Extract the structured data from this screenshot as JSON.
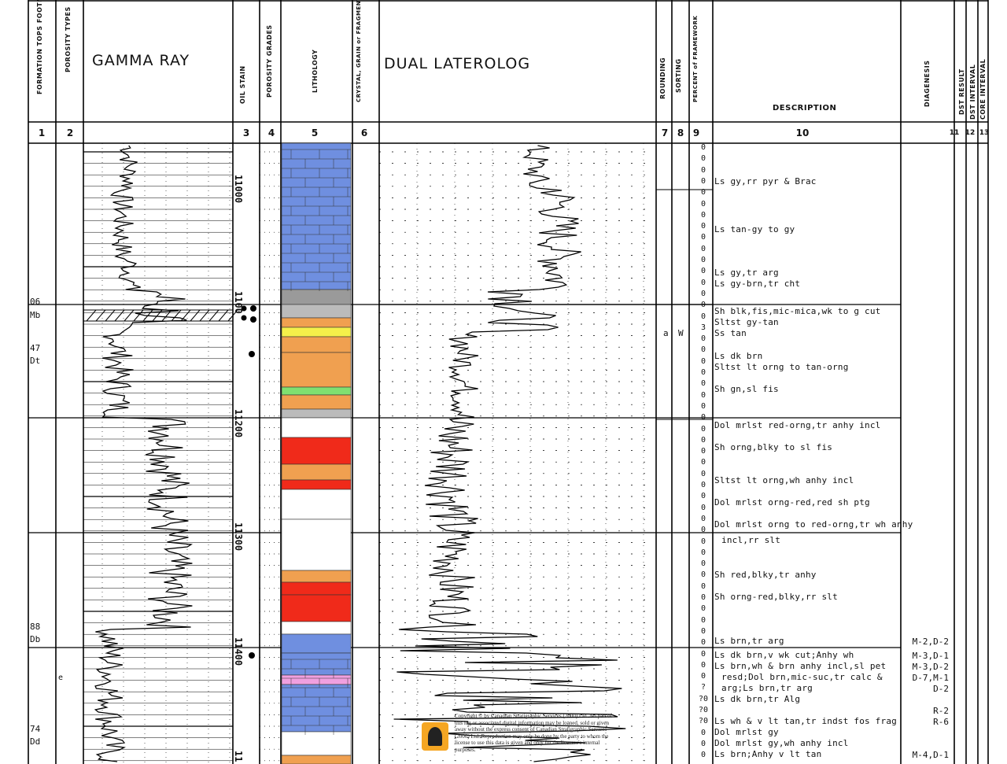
{
  "headers": {
    "col1": "FORMATION TOPS FOOTNOTES",
    "col2": "POROSITY TYPES",
    "gamma": "GAMMA RAY",
    "oil": "OIL STAIN",
    "porgrades": "POROSITY GRADES",
    "litho": "LITHOLOGY",
    "crystal": "CRYSTAL, GRAIN or FRAGMENT SIZE",
    "dual": "DUAL LATEROLOG",
    "rounding": "ROUNDING",
    "sorting": "SORTING",
    "percent": "PERCENT of FRAMEWORK",
    "description": "DESCRIPTION",
    "diagenesis": "DIAGENESIS",
    "dst_result": "DST RESULT",
    "dst_interval": "DST INTERVAL",
    "core_interval": "CORE INTERVAL"
  },
  "column_numbers": [
    "1",
    "2",
    "3",
    "4",
    "5",
    "6",
    "7",
    "8",
    "9",
    "10",
    "11",
    "12",
    "13"
  ],
  "depth_labels": [
    "11000",
    "1100",
    "11200",
    "11300",
    "11400",
    "11"
  ],
  "formation_tops": [
    "06",
    "Mb",
    "47",
    "Dt",
    "88",
    "Db",
    "74",
    "Dd"
  ],
  "porosity_note": "e",
  "rounding_sorting": {
    "rounding": "a",
    "sorting": "W"
  },
  "percent_values": [
    "0",
    "0",
    "0",
    "0",
    "0",
    "0",
    "0",
    "0",
    "0",
    "0",
    "0",
    "0",
    "0",
    "0",
    "0",
    "0",
    "3",
    "0",
    "0",
    "0",
    "0",
    "0",
    "0",
    "0",
    "0",
    "0",
    "0",
    "0",
    "0",
    "0",
    "0",
    "0",
    "0",
    "0",
    "0",
    "0",
    "0",
    "0",
    "0",
    "0",
    "0",
    "0",
    "0",
    "0",
    "0",
    "0",
    "0",
    "0",
    "?",
    "?0",
    "?0",
    "?0",
    "0",
    "0",
    "0"
  ],
  "descriptions": [
    "Ls gy,rr pyr & Brac",
    "Ls tan-gy to gy",
    "Ls gy,tr arg",
    "Ls gy-brn,tr cht",
    "Sh blk,fis,mic-mica,wk to g cut",
    "Sltst gy-tan",
    "Ss tan",
    "Ls dk brn",
    "Sltst lt orng to tan-orng",
    "Sh gn,sl fis",
    "Dol mrlst red-orng,tr anhy incl",
    "Sh orng,blky to sl fis",
    "Sltst lt orng,wh anhy incl",
    "Dol mrlst orng-red,red sh ptg",
    "Dol mrlst orng to red-orng,tr wh anhy",
    "incl,rr slt",
    "Sh red,blky,tr anhy",
    "Sh orng-red,blky,rr slt",
    "Ls brn,tr arg",
    "Ls dk brn,v wk cut;Anhy wh",
    "Ls brn,wh & brn anhy incl,sl pet",
    "resd;Dol brn,mic-suc,tr calc &",
    "arg;Ls brn,tr arg",
    "Ls dk brn,tr Alg",
    "Ls wh & v lt tan,tr indst fos frag",
    "Dol mrlst gy",
    "Dol mrlst gy,wh anhy incl",
    "Ls brn;Anhy v lt tan"
  ],
  "diagenesis": [
    "M-2,D-2",
    "M-3,D-1",
    "M-3,D-2",
    "D-7,M-1",
    "D-2",
    "R-2",
    "R-6",
    "M-4,D-1"
  ],
  "copyright": "Copyright © by Canadian Stratigraphic Services (2000) Ltd. No part of this log or associated digital information may be loaned, sold or given away without the express consent of Canadian Stratigraphic Services (2000) Ltd. Reproduction may only be done by the party to whom the license to use this data is given and only for the licensee's internal purposes.",
  "colors": {
    "limestone": "#6f8fe0",
    "shale_gray": "#9a9a9a",
    "siltstone_orange": "#f0a050",
    "sand_yellow": "#f4f04a",
    "green": "#80e070",
    "red": "#f02a1a",
    "white": "#ffffff",
    "pink": "#f0a0e0"
  }
}
